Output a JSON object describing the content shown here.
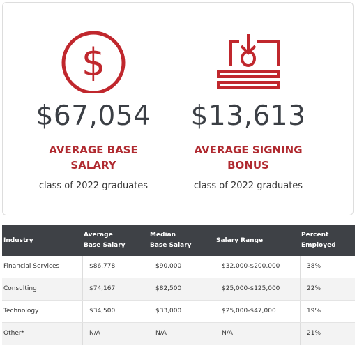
{
  "stats": [
    {
      "value": "$67,054",
      "label": [
        "AVERAGE BASE",
        "SALARY"
      ],
      "note": "class of 2022 graduates"
    },
    {
      "value": "$13,613",
      "label": [
        "AVERAGE SIGNING",
        "BONUS"
      ],
      "note": "class of 2022 graduates"
    }
  ],
  "table": {
    "header": [
      [
        "Industry"
      ],
      [
        "Average",
        "Base Salary"
      ],
      [
        "Median",
        "Base Salary"
      ],
      [
        "Salary Range"
      ],
      [
        "Percent",
        "Employed"
      ]
    ],
    "rows": [
      [
        "Financial Services",
        "$86,778",
        "$90,000",
        "$32,000-$200,000",
        "38%"
      ],
      [
        "Consulting",
        "$74,167",
        "$82,500",
        "$25,000-$125,000",
        "22%"
      ],
      [
        "Technology",
        "$34,500",
        "$33,000",
        "$25,000-$47,000",
        "19%"
      ],
      [
        "Other*",
        "N/A",
        "N/A",
        "N/A",
        "21%"
      ]
    ]
  }
}
